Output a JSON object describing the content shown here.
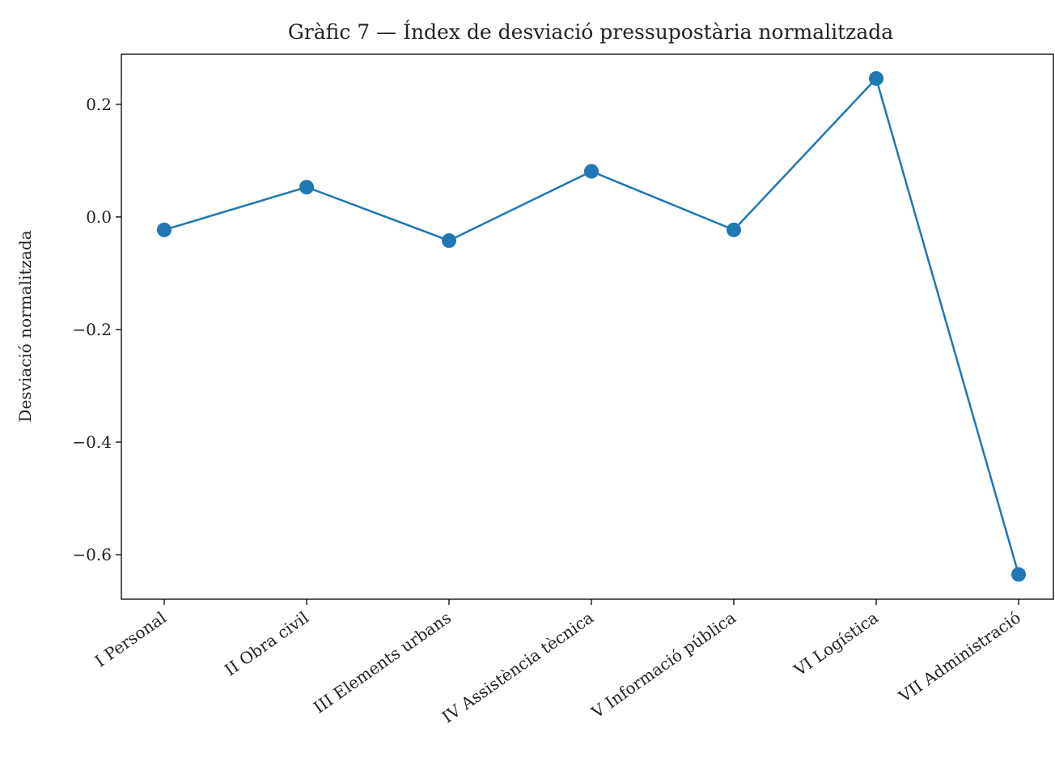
{
  "chart_data": {
    "type": "line",
    "title": "Gràfic 7 — Índex de desviació pressupostària normalitzada",
    "y_label": "Desviació normalitzada",
    "categories": [
      "I Personal",
      "II Obra civil",
      "III Elements urbans",
      "IV Assistència tècnica",
      "V Informació pública",
      "VI Logística",
      "VII Administració"
    ],
    "series": [
      {
        "name": "Desviació normalitzada",
        "color": "#1f77b4",
        "values": [
          -0.023,
          0.053,
          -0.042,
          0.081,
          -0.023,
          0.246,
          -0.635
        ]
      }
    ],
    "ylim": [
      -0.679,
      0.289
    ],
    "yticks": [
      0.2,
      {
        "value": 0,
        "label": "0.0"
      },
      {
        "value": -0.2,
        "label": "−0.2"
      },
      {
        "value": -0.4,
        "label": "−0.4"
      },
      {
        "value": -0.6,
        "label": "−0.6"
      }
    ],
    "grid": false
  }
}
